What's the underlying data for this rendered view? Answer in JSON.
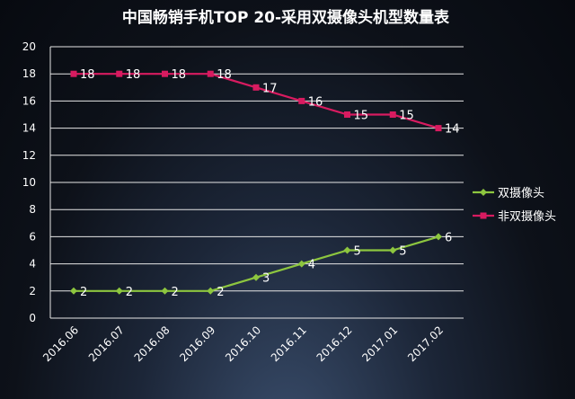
{
  "chart_data": {
    "type": "line",
    "title": "中国畅销手机TOP 20-采用双摄像头机型数量表",
    "categories": [
      "2016.06",
      "2016.07",
      "2016.08",
      "2016.09",
      "2016.10",
      "2016.11",
      "2016.12",
      "2017.01",
      "2017.02"
    ],
    "series": [
      {
        "name": "双摄像头",
        "values": [
          2,
          2,
          2,
          2,
          3,
          4,
          5,
          5,
          6
        ],
        "color": "#8dc63f",
        "marker": "diamond"
      },
      {
        "name": "非双摄像头",
        "values": [
          18,
          18,
          18,
          18,
          17,
          16,
          15,
          15,
          14
        ],
        "color": "#d81b60",
        "marker": "square"
      }
    ],
    "ylim": [
      0,
      20
    ],
    "yticks": [
      0,
      2,
      4,
      6,
      8,
      10,
      12,
      14,
      16,
      18,
      20
    ],
    "grid": true,
    "data_labels": true,
    "legend_position": "right"
  }
}
